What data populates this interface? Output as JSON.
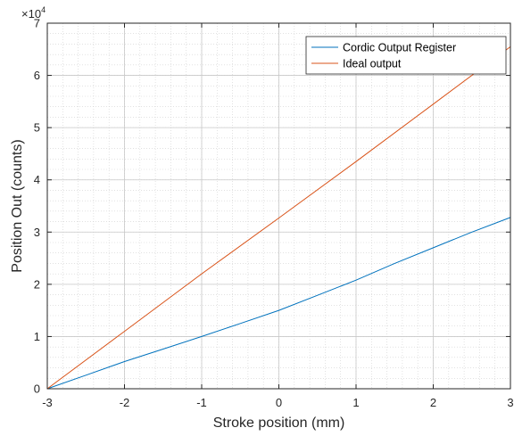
{
  "chart_data": {
    "type": "line",
    "xlabel": "Stroke position (mm)",
    "ylabel": "Position Out (counts)",
    "y_exponent_base": "×10",
    "y_exponent_power": "4",
    "xlim": [
      -3,
      3
    ],
    "ylim": [
      0,
      70000
    ],
    "xticks": [
      -3,
      -2,
      -1,
      0,
      1,
      2,
      3
    ],
    "yticks": [
      0,
      10000,
      20000,
      30000,
      40000,
      50000,
      60000,
      70000
    ],
    "xtick_labels": [
      "-3",
      "-2",
      "-1",
      "0",
      "1",
      "2",
      "3"
    ],
    "ytick_labels": [
      "0",
      "1",
      "2",
      "3",
      "4",
      "5",
      "6",
      "7"
    ],
    "grid": true,
    "minor_grid": true,
    "legend_position": "top-right",
    "series": [
      {
        "name": "Cordic Output Register",
        "color": "#0072BD",
        "x": [
          -3,
          -2.5,
          -2,
          -1.5,
          -1,
          -0.5,
          0,
          0.5,
          1,
          1.5,
          2,
          2.5,
          3
        ],
        "y": [
          0,
          2600,
          5200,
          7600,
          10000,
          12500,
          15000,
          17900,
          20800,
          24000,
          27000,
          30000,
          32800
        ]
      },
      {
        "name": "Ideal output",
        "color": "#D95319",
        "x": [
          -3,
          -2,
          -1,
          0,
          1,
          2,
          3
        ],
        "y": [
          0,
          11000,
          22000,
          32700,
          43500,
          54500,
          65500
        ]
      }
    ]
  }
}
